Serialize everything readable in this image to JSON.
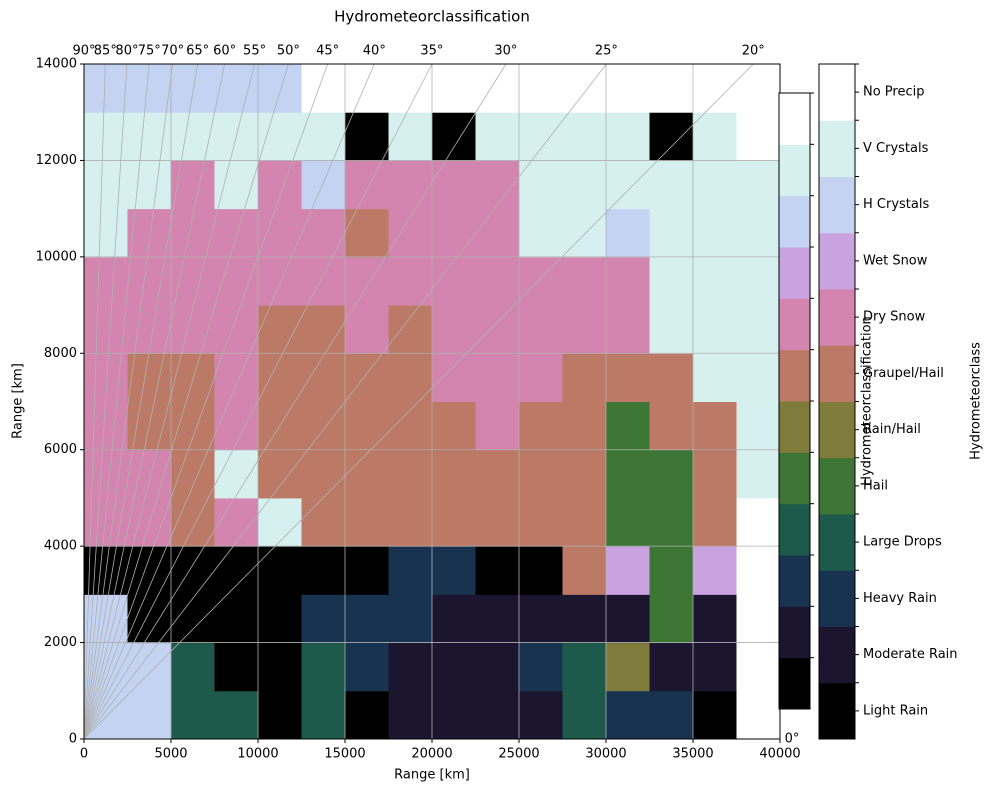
{
  "chart_data": {
    "type": "heatmap",
    "title": "Hydrometeorclassification",
    "x_label": "Range [km]",
    "y_label": "Range [km]",
    "xlim": [
      0,
      40000
    ],
    "ylim": [
      0,
      14000
    ],
    "xticks": [
      0,
      5000,
      10000,
      15000,
      20000,
      25000,
      30000,
      35000,
      40000
    ],
    "yticks": [
      0,
      2000,
      4000,
      6000,
      8000,
      10000,
      12000,
      14000
    ],
    "grid": true,
    "xbins": [
      0,
      2500,
      5000,
      7500,
      10000,
      12500,
      15000,
      17500,
      20000,
      22500,
      25000,
      27500,
      30000,
      32500,
      35000,
      37500,
      40000
    ],
    "ybins": [
      0,
      1000,
      2000,
      3000,
      4000,
      5000,
      6000,
      7000,
      8000,
      9000,
      10000,
      11000,
      12000,
      13000,
      14000
    ],
    "classes": [
      "Light Rain",
      "Moderate Rain",
      "Heavy Rain",
      "Large Drops",
      "Hail",
      "Rain/Hail",
      "Graupel/Hail",
      "Dry Snow",
      "Wet Snow",
      "H Crystals",
      "V Crystals",
      "No Precip"
    ],
    "colors": [
      "#000000",
      "#1c1530",
      "#173350",
      "#1d5a4c",
      "#3c7534",
      "#7f7b3a",
      "#bc7a66",
      "#d385b0",
      "#c9a3e0",
      "#c3d3f1",
      "#d6f0ef",
      "#ffffff"
    ],
    "z": [
      [
        9,
        9,
        3,
        3,
        0,
        3,
        0,
        1,
        1,
        1,
        1,
        3,
        2,
        2,
        0,
        11
      ],
      [
        9,
        9,
        3,
        0,
        0,
        3,
        2,
        1,
        1,
        1,
        2,
        3,
        5,
        1,
        1,
        11
      ],
      [
        9,
        0,
        0,
        0,
        0,
        2,
        2,
        2,
        1,
        1,
        1,
        1,
        1,
        4,
        1,
        11
      ],
      [
        0,
        0,
        0,
        0,
        0,
        0,
        0,
        2,
        2,
        0,
        0,
        6,
        8,
        4,
        8,
        11
      ],
      [
        7,
        7,
        6,
        7,
        10,
        6,
        6,
        6,
        6,
        6,
        6,
        6,
        4,
        4,
        6,
        11
      ],
      [
        7,
        7,
        6,
        10,
        6,
        6,
        6,
        6,
        6,
        6,
        6,
        6,
        4,
        4,
        6,
        10
      ],
      [
        7,
        6,
        6,
        7,
        6,
        6,
        6,
        6,
        6,
        7,
        6,
        6,
        4,
        6,
        6,
        10
      ],
      [
        7,
        6,
        6,
        7,
        6,
        6,
        6,
        6,
        7,
        7,
        7,
        6,
        6,
        6,
        10,
        10
      ],
      [
        7,
        7,
        7,
        7,
        6,
        6,
        7,
        6,
        7,
        7,
        7,
        7,
        7,
        10,
        10,
        10
      ],
      [
        7,
        7,
        7,
        7,
        7,
        7,
        7,
        7,
        7,
        7,
        7,
        7,
        7,
        10,
        10,
        10
      ],
      [
        10,
        7,
        7,
        7,
        7,
        7,
        6,
        7,
        7,
        7,
        10,
        10,
        9,
        10,
        10,
        10
      ],
      [
        10,
        10,
        7,
        10,
        7,
        9,
        7,
        7,
        7,
        7,
        10,
        10,
        10,
        10,
        10,
        10
      ],
      [
        10,
        10,
        10,
        10,
        10,
        10,
        0,
        10,
        0,
        10,
        10,
        10,
        10,
        0,
        10,
        11
      ],
      [
        9,
        9,
        9,
        9,
        9,
        11,
        11,
        11,
        11,
        11,
        11,
        11,
        11,
        11,
        11,
        11
      ]
    ],
    "elevation_angles": [
      {
        "value": 90,
        "label": "90°"
      },
      {
        "value": 85,
        "label": "85°"
      },
      {
        "value": 80,
        "label": "80°"
      },
      {
        "value": 75,
        "label": "75°"
      },
      {
        "value": 70,
        "label": "70°"
      },
      {
        "value": 65,
        "label": "65°"
      },
      {
        "value": 60,
        "label": "60°"
      },
      {
        "value": 55,
        "label": "55°"
      },
      {
        "value": 50,
        "label": "50°"
      },
      {
        "value": 45,
        "label": "45°"
      },
      {
        "value": 40,
        "label": "40°"
      },
      {
        "value": 35,
        "label": "35°"
      },
      {
        "value": 30,
        "label": "30°"
      },
      {
        "value": 25,
        "label": "25°"
      },
      {
        "value": 20,
        "label": "20°"
      },
      {
        "value": 0,
        "label": "0°"
      }
    ],
    "colorbar_label_inner": "Hydrometeorclassification",
    "colorbar_label": "Hydrometeorclass"
  }
}
